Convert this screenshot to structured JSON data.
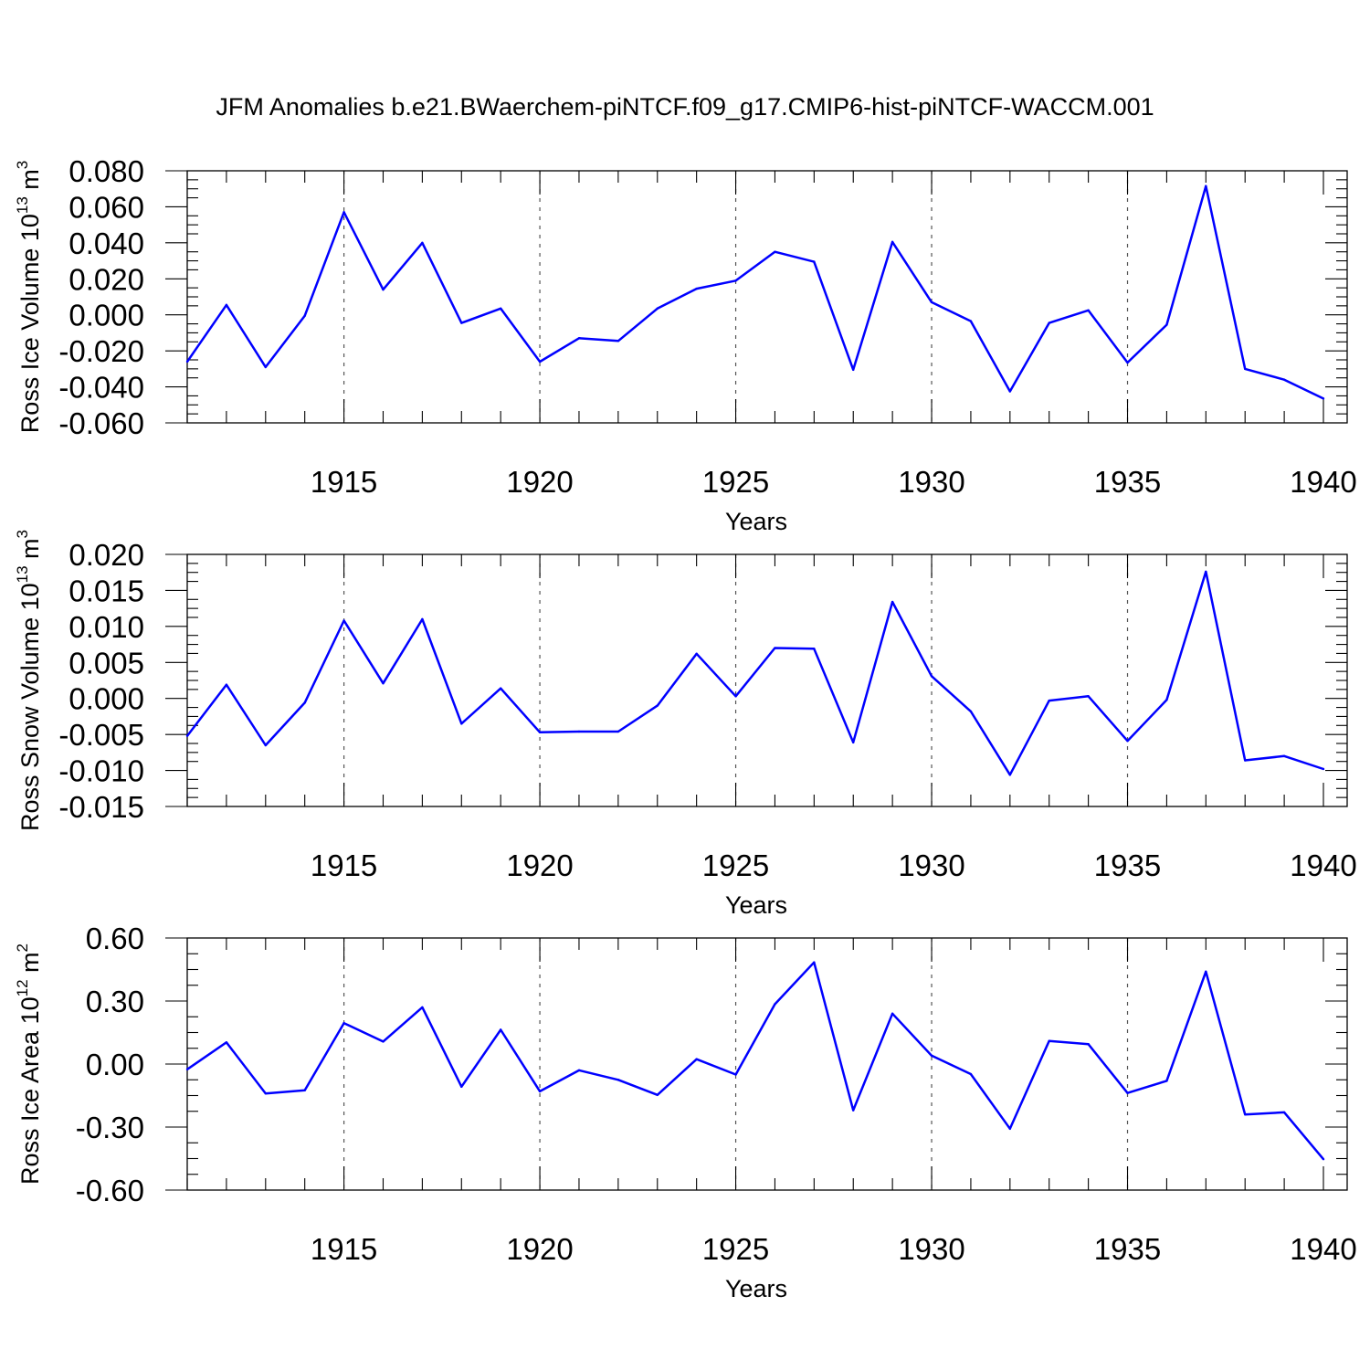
{
  "title": "JFM Anomalies b.e21.BWaerchem-piNTCF.f09_g17.CMIP6-hist-piNTCF-WACCM.001",
  "colors": {
    "line": "#0000ff",
    "axis": "#000000"
  },
  "chart_data": [
    {
      "type": "line",
      "name": "ross-ice-volume",
      "ylabel_main": "Ross Ice Volume 10",
      "ylabel_exp": "13",
      "ylabel_unit": " m",
      "ylabel_unit_exp": "3",
      "xlabel": "Years",
      "xlim": [
        1911,
        1940
      ],
      "ylim": [
        -0.06,
        0.08
      ],
      "yticks": [
        -0.06,
        -0.04,
        -0.02,
        0.0,
        0.02,
        0.04,
        0.06,
        0.08
      ],
      "ytick_labels": [
        "-0.060",
        "-0.040",
        "-0.020",
        "0.000",
        "0.020",
        "0.040",
        "0.060",
        "0.080"
      ],
      "y_minor_step": 0.005,
      "xticks": [
        1915,
        1920,
        1925,
        1930,
        1935,
        1940
      ],
      "xtick_labels": [
        "1915",
        "1920",
        "1925",
        "1930",
        "1935",
        "1940"
      ],
      "x": [
        1911,
        1912,
        1913,
        1914,
        1915,
        1916,
        1917,
        1918,
        1919,
        1920,
        1921,
        1922,
        1923,
        1924,
        1925,
        1926,
        1927,
        1928,
        1929,
        1930,
        1931,
        1932,
        1933,
        1934,
        1935,
        1936,
        1937,
        1938,
        1939,
        1940
      ],
      "series": [
        {
          "name": "Ross Ice Volume",
          "values": [
            -0.026,
            0.0055,
            -0.029,
            -0.0005,
            0.057,
            0.014,
            0.04,
            -0.0045,
            0.0035,
            -0.026,
            -0.013,
            -0.0145,
            0.0035,
            0.0145,
            0.019,
            0.035,
            0.0295,
            -0.0305,
            0.0405,
            0.007,
            -0.0035,
            -0.0425,
            -0.0045,
            0.0025,
            -0.0265,
            -0.0055,
            0.0715,
            -0.03,
            -0.036,
            -0.0465
          ]
        }
      ]
    },
    {
      "type": "line",
      "name": "ross-snow-volume",
      "ylabel_main": "Ross Snow Volume 10",
      "ylabel_exp": "13",
      "ylabel_unit": " m",
      "ylabel_unit_exp": "3",
      "xlabel": "Years",
      "xlim": [
        1911,
        1940
      ],
      "ylim": [
        -0.015,
        0.02
      ],
      "yticks": [
        -0.015,
        -0.01,
        -0.005,
        0.0,
        0.005,
        0.01,
        0.015,
        0.02
      ],
      "ytick_labels": [
        "-0.015",
        "-0.010",
        "-0.005",
        "0.000",
        "0.005",
        "0.010",
        "0.015",
        "0.020"
      ],
      "y_minor_step": 0.00125,
      "xticks": [
        1915,
        1920,
        1925,
        1930,
        1935,
        1940
      ],
      "xtick_labels": [
        "1915",
        "1920",
        "1925",
        "1930",
        "1935",
        "1940"
      ],
      "x": [
        1911,
        1912,
        1913,
        1914,
        1915,
        1916,
        1917,
        1918,
        1919,
        1920,
        1921,
        1922,
        1923,
        1924,
        1925,
        1926,
        1927,
        1928,
        1929,
        1930,
        1931,
        1932,
        1933,
        1934,
        1935,
        1936,
        1937,
        1938,
        1939,
        1940
      ],
      "series": [
        {
          "name": "Ross Snow Volume",
          "values": [
            -0.0052,
            0.0019,
            -0.0065,
            -0.0006,
            0.0108,
            0.0021,
            0.011,
            -0.0035,
            0.0014,
            -0.0047,
            -0.0046,
            -0.0046,
            -0.001,
            0.0062,
            0.0003,
            0.007,
            0.0069,
            -0.0061,
            0.0134,
            0.0031,
            -0.0018,
            -0.0106,
            -0.0003,
            0.0003,
            -0.0059,
            -0.0002,
            0.0176,
            -0.0086,
            -0.008,
            -0.0098
          ]
        }
      ]
    },
    {
      "type": "line",
      "name": "ross-ice-area",
      "ylabel_main": "Ross Ice Area 10",
      "ylabel_exp": "12",
      "ylabel_unit": " m",
      "ylabel_unit_exp": "2",
      "xlabel": "Years",
      "xlim": [
        1911,
        1940
      ],
      "ylim": [
        -0.6,
        0.6
      ],
      "yticks": [
        -0.6,
        -0.3,
        0.0,
        0.3,
        0.6
      ],
      "ytick_labels": [
        "-0.60",
        "-0.30",
        "0.00",
        "0.30",
        "0.60"
      ],
      "y_minor_step": 0.075,
      "xticks": [
        1915,
        1920,
        1925,
        1930,
        1935,
        1940
      ],
      "xtick_labels": [
        "1915",
        "1920",
        "1925",
        "1930",
        "1935",
        "1940"
      ],
      "x": [
        1911,
        1912,
        1913,
        1914,
        1915,
        1916,
        1917,
        1918,
        1919,
        1920,
        1921,
        1922,
        1923,
        1924,
        1925,
        1926,
        1927,
        1928,
        1929,
        1930,
        1931,
        1932,
        1933,
        1934,
        1935,
        1936,
        1937,
        1938,
        1939,
        1940
      ],
      "series": [
        {
          "name": "Ross Ice Area",
          "values": [
            -0.025,
            0.103,
            -0.14,
            -0.125,
            0.195,
            0.107,
            0.27,
            -0.108,
            0.163,
            -0.13,
            -0.03,
            -0.075,
            -0.147,
            0.023,
            -0.05,
            0.285,
            0.484,
            -0.22,
            0.24,
            0.04,
            -0.048,
            -0.308,
            0.11,
            0.095,
            -0.138,
            -0.08,
            0.44,
            -0.24,
            -0.23,
            -0.453
          ]
        }
      ]
    }
  ]
}
